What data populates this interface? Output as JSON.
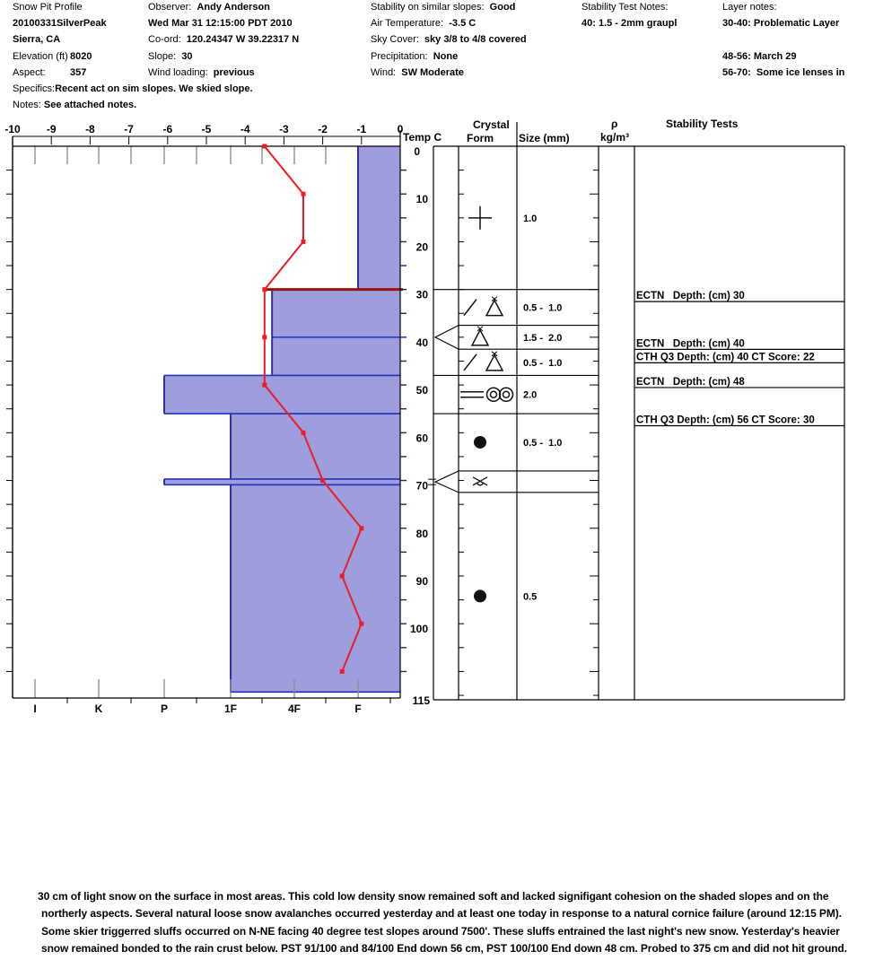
{
  "header": {
    "columns": [
      {
        "name": "pit-id",
        "rows": [
          {
            "l": "Snow Pit Profile",
            "v": ""
          },
          {
            "l": "",
            "v": "20100331SilverPeak"
          },
          {
            "l": "",
            "v": "Sierra, CA"
          },
          {
            "l": "Elevation (ft)",
            "v": "8020",
            "lw": true
          },
          {
            "l": "Aspect:",
            "v": "357",
            "lw": true
          },
          {
            "l": "Specifics:",
            "v": "Recent act on sim slopes. We skied slope."
          },
          {
            "l": "Notes: ",
            "v": "See attached notes."
          }
        ]
      },
      {
        "name": "observer",
        "rows": [
          {
            "l": "Observer:  ",
            "v": "Andy Anderson"
          },
          {
            "l": "",
            "v": "Wed Mar 31 12:15:00 PDT 2010"
          },
          {
            "l": "Co-ord:  ",
            "v": "120.24347 W 39.22317 N"
          },
          {
            "l": "Slope:  ",
            "v": "30"
          },
          {
            "l": "Wind loading:  ",
            "v": "previous"
          }
        ]
      },
      {
        "name": "conditions",
        "rows": [
          {
            "l": "Stability on similar slopes:  ",
            "v": "Good"
          },
          {
            "l": "Air Temperature:  ",
            "v": "-3.5 C"
          },
          {
            "l": "Sky Cover:  ",
            "v": "sky 3/8 to 4/8 covered"
          },
          {
            "l": "Precipitation:  ",
            "v": "None"
          },
          {
            "l": "Wind:  ",
            "v": "SW Moderate"
          }
        ]
      },
      {
        "name": "stability-test-notes",
        "rows": [
          {
            "l": "Stability Test Notes:",
            "v": ""
          },
          {
            "l": "",
            "v": "40: 1.5 - 2mm graupl"
          }
        ]
      },
      {
        "name": "layer-notes",
        "rows": [
          {
            "l": "Layer notes:",
            "v": ""
          },
          {
            "l": "",
            "v": "30-40: Problematic Layer"
          },
          {
            "l": "",
            "v": ""
          },
          {
            "l": "",
            "v": "48-56: March 29"
          },
          {
            "l": "",
            "v": "56-70:  Some ice lenses in"
          }
        ]
      }
    ]
  },
  "chart_data": {
    "type": "snow-pit-profile",
    "temp_axis": {
      "label": "Temp C",
      "min": -10,
      "max": 0,
      "ticks": [
        -10,
        -9,
        -8,
        -7,
        -6,
        -5,
        -4,
        -3,
        -2,
        -1,
        0
      ]
    },
    "depth_axis": {
      "unit": "cm",
      "tick_labels": [
        0,
        10,
        20,
        30,
        40,
        50,
        60,
        70,
        80,
        90,
        100
      ],
      "total_depth_label": "115",
      "max_depth": 115
    },
    "hardness_axis": {
      "labels": [
        "I",
        "K",
        "P",
        "1F",
        "4F",
        "F"
      ]
    },
    "temperature_profile": [
      {
        "depth_cm": 0,
        "temp_c": -3.5
      },
      {
        "depth_cm": 10,
        "temp_c": -2.5
      },
      {
        "depth_cm": 20,
        "temp_c": -2.5
      },
      {
        "depth_cm": 30,
        "temp_c": -3.5
      },
      {
        "depth_cm": 40,
        "temp_c": -3.5
      },
      {
        "depth_cm": 50,
        "temp_c": -3.5
      },
      {
        "depth_cm": 60,
        "temp_c": -2.5
      },
      {
        "depth_cm": 70,
        "temp_c": -2.0
      },
      {
        "depth_cm": 80,
        "temp_c": -1.0
      },
      {
        "depth_cm": 90,
        "temp_c": -1.5
      },
      {
        "depth_cm": 100,
        "temp_c": -1.0
      },
      {
        "depth_cm": 110,
        "temp_c": -1.5
      }
    ],
    "hardness_layers": [
      {
        "from_cm": 0,
        "to_cm": 30,
        "hardness": "F",
        "scale_value": 5
      },
      {
        "from_cm": 30,
        "to_cm": 48,
        "hardness": "4F",
        "scale_value": 3.65
      },
      {
        "from_cm": 48,
        "to_cm": 56,
        "hardness": "P",
        "scale_value": 2
      },
      {
        "from_cm": 56,
        "to_cm": 69.7,
        "hardness": "1F",
        "scale_value": 3
      },
      {
        "from_cm": 69.7,
        "to_cm": 70.9,
        "hardness": "P",
        "scale_value": 2
      },
      {
        "from_cm": 70.9,
        "to_cm": 114.3,
        "hardness": "1F",
        "scale_value": 3
      }
    ],
    "crust_line_depth_cm": 30,
    "layer_boundaries_cm": [
      40,
      48,
      56,
      69.7,
      70.9,
      114.3
    ],
    "grain_rows": [
      {
        "from_cm": 0,
        "to_cm": 30,
        "forms": [
          "new-snow-plus"
        ],
        "size_mm": "1.0"
      },
      {
        "from_cm": 30,
        "to_cm": 37.5,
        "forms": [
          "decomposed-slash",
          "graupel-triangle"
        ],
        "size_mm": "0.5 -  1.0"
      },
      {
        "from_cm": 37.5,
        "to_cm": 42.5,
        "forms": [
          "graupel-triangle"
        ],
        "size_mm": "1.5 -  2.0"
      },
      {
        "from_cm": 42.5,
        "to_cm": 48,
        "forms": [
          "decomposed-slash",
          "graupel-triangle"
        ],
        "size_mm": "0.5 -  1.0"
      },
      {
        "from_cm": 48,
        "to_cm": 56,
        "forms": [
          "ice-lens-bars",
          "clustered-rounds"
        ],
        "size_mm": "2.0"
      },
      {
        "from_cm": 56,
        "to_cm": 68,
        "forms": [
          "rounded-grain-dot"
        ],
        "size_mm": "0.5 -  1.0"
      },
      {
        "from_cm": 68,
        "to_cm": 72.5,
        "forms": [
          "crust-symbol"
        ],
        "size_mm": ""
      },
      {
        "from_cm": 72.5,
        "to_cm": 116,
        "forms": [
          "rounded-grain-dot"
        ],
        "size_mm": "0.5"
      }
    ],
    "flagged_depths_cm": [
      40,
      70.3
    ],
    "column_headers": {
      "temp": "Temp C",
      "crystal": "Crystal",
      "form": "Form",
      "size": "Size (mm)",
      "rho": "ρ",
      "rho_unit": "kg/m³",
      "stability": "Stability Tests"
    },
    "density_values": [],
    "stability_tests": [
      {
        "depth_cm": 30,
        "row": 0,
        "text": "ECTN   Depth: (cm) 30"
      },
      {
        "depth_cm": 40,
        "row": 0,
        "text": "ECTN   Depth: (cm) 40"
      },
      {
        "depth_cm": 40,
        "row": 1,
        "text": "CTH Q3 Depth: (cm) 40 CT Score: 22"
      },
      {
        "depth_cm": 48,
        "row": 0,
        "text": "ECTN   Depth: (cm) 48"
      },
      {
        "depth_cm": 56,
        "row": 0,
        "text": "CTH Q3 Depth: (cm) 56 CT Score: 30"
      }
    ],
    "colors": {
      "bar_fill": "#9e9dde",
      "bar_border": "#3333a0",
      "layer_line": "#2233bb",
      "temp_line": "#ed1c24",
      "crust_line": "#991010",
      "grid_gray": "#909090"
    }
  },
  "notes": {
    "lines": [
      "30 cm of light snow on the surface in most areas. This cold low density snow remained soft and lacked signifigant cohesion on the shaded slopes and on the",
      "northerly aspects. Several natural loose snow avalanches occurred yesterday and at least one today in response to a natural cornice failure (around 12:15 PM).",
      "Some skier triggerred sluffs occurred on N-NE facing 40 degree test slopes around 7500'. These sluffs entrained the last night's new snow. Yesterday's heavier",
      "snow remained bonded to the rain crust below.  PST 91/100 and 84/100 End down 56 cm, PST 100/100 End down 48 cm. Probed to 375 cm and did not hit ground."
    ]
  }
}
